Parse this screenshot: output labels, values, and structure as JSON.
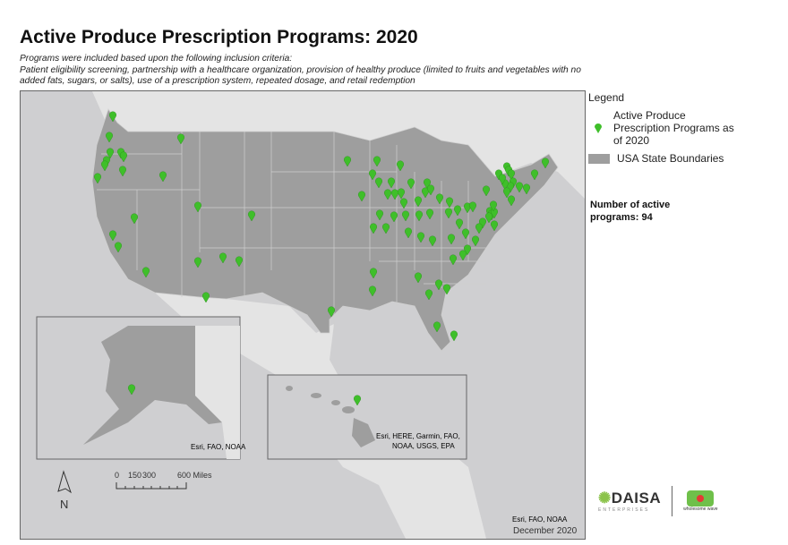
{
  "title": "Active Produce Prescription Programs: 2020",
  "criteria_intro": "Programs were included based upon the following inclusion criteria:",
  "criteria": "Patient eligibility screening, partnership with a healthcare organization, provision of healthy produce (limited to fruits and vegetables with no added fats, sugars, or salts), use of a prescription system, repeated dosage, and retail redemption",
  "legend": {
    "title": "Legend",
    "items": [
      {
        "label": "Active Produce Prescription Programs as of 2020",
        "icon": "green-map-pin",
        "color": "#3fbf2a"
      },
      {
        "label": "USA State Boundaries",
        "color": "#9e9e9e"
      }
    ]
  },
  "count_text": "Number of active programs: 94",
  "active_programs": 94,
  "map": {
    "alaska_credit": "Esri, FAO, NOAA",
    "hawaii_credit_1": "Esri, HERE, Garmin, FAO,",
    "hawaii_credit_2": "NOAA, USGS, EPA",
    "main_credit": "Esri, FAO, NOAA",
    "date": "December 2020",
    "scale_labels": [
      "0",
      "150",
      "300",
      "600 Miles"
    ],
    "north_label": "N"
  },
  "logos": {
    "daisa": "DAISA",
    "daisa_sub": "ENTERPRISES",
    "wholesome": "wholesome wave"
  },
  "colors": {
    "marker": "#3fbf2a",
    "states": "#9e9e9e",
    "ocean": "#cfcfd1",
    "land": "#e4e4e4"
  }
}
